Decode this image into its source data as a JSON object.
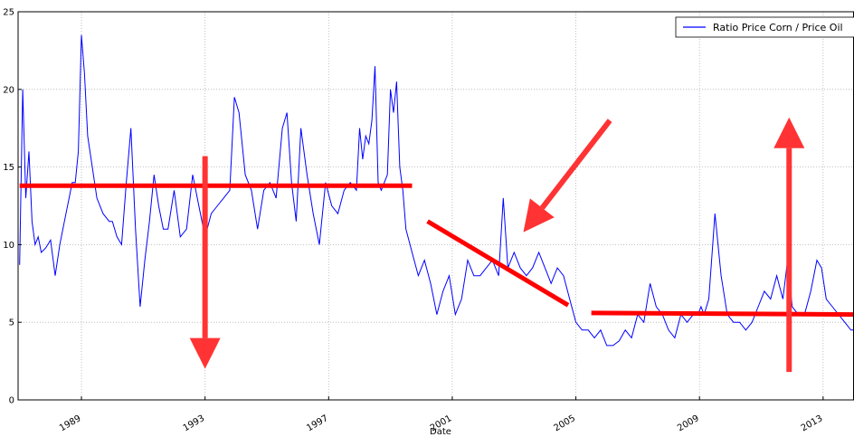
{
  "chart_data": {
    "type": "line",
    "title": "",
    "xlabel": "Date",
    "ylabel": "",
    "xlim": [
      1986.95,
      2014.0
    ],
    "ylim": [
      0,
      25
    ],
    "grid": true,
    "legend_placement": "top-right",
    "x_ticks": [
      1989,
      1993,
      1997,
      2001,
      2005,
      2009,
      2013
    ],
    "x_tick_labels": [
      "1989",
      "1993",
      "1997",
      "2001",
      "2005",
      "2009",
      "2013"
    ],
    "y_ticks": [
      0,
      5,
      10,
      15,
      20,
      25
    ],
    "y_tick_labels": [
      "0",
      "5",
      "10",
      "15",
      "20",
      "25"
    ],
    "series": [
      {
        "name": "Ratio Price Corn / Price Oil",
        "color": "#0000ff",
        "x": [
          1987.0,
          1987.1,
          1987.2,
          1987.3,
          1987.4,
          1987.5,
          1987.6,
          1987.7,
          1987.85,
          1988.0,
          1988.15,
          1988.3,
          1988.45,
          1988.6,
          1988.7,
          1988.8,
          1988.9,
          1989.0,
          1989.1,
          1989.2,
          1989.35,
          1989.5,
          1989.7,
          1989.9,
          1990.0,
          1990.15,
          1990.3,
          1990.45,
          1990.6,
          1990.75,
          1990.9,
          1991.05,
          1991.2,
          1991.35,
          1991.5,
          1991.65,
          1991.8,
          1992.0,
          1992.2,
          1992.4,
          1992.6,
          1992.8,
          1993.0,
          1993.2,
          1993.4,
          1993.6,
          1993.8,
          1993.95,
          1994.1,
          1994.3,
          1994.5,
          1994.7,
          1994.9,
          1995.1,
          1995.3,
          1995.5,
          1995.65,
          1995.8,
          1995.95,
          1996.1,
          1996.3,
          1996.5,
          1996.7,
          1996.9,
          1997.1,
          1997.3,
          1997.5,
          1997.7,
          1997.9,
          1998.0,
          1998.1,
          1998.2,
          1998.3,
          1998.4,
          1998.5,
          1998.6,
          1998.7,
          1998.8,
          1998.9,
          1999.0,
          1999.1,
          1999.2,
          1999.3,
          1999.4,
          1999.5,
          1999.7,
          1999.9,
          2000.1,
          2000.3,
          2000.5,
          2000.7,
          2000.9,
          2001.1,
          2001.3,
          2001.5,
          2001.7,
          2001.9,
          2002.1,
          2002.3,
          2002.5,
          2002.65,
          2002.8,
          2003.0,
          2003.2,
          2003.4,
          2003.6,
          2003.8,
          2004.0,
          2004.2,
          2004.4,
          2004.6,
          2004.8,
          2005.0,
          2005.2,
          2005.4,
          2005.6,
          2005.8,
          2006.0,
          2006.2,
          2006.4,
          2006.6,
          2006.8,
          2007.0,
          2007.2,
          2007.4,
          2007.6,
          2007.8,
          2008.0,
          2008.2,
          2008.4,
          2008.6,
          2008.8,
          2008.95,
          2009.05,
          2009.15,
          2009.3,
          2009.5,
          2009.7,
          2009.9,
          2010.1,
          2010.3,
          2010.5,
          2010.7,
          2010.9,
          2011.1,
          2011.3,
          2011.5,
          2011.7,
          2011.85,
          2012.0,
          2012.2,
          2012.4,
          2012.6,
          2012.8,
          2012.95,
          2013.1,
          2013.3,
          2013.5,
          2013.7,
          2013.9,
          2014.0
        ],
        "y": [
          8.7,
          20.0,
          13.0,
          16.0,
          11.5,
          10.0,
          10.5,
          9.5,
          9.8,
          10.3,
          8.0,
          10.0,
          11.5,
          13.0,
          14.0,
          14.0,
          16.0,
          23.5,
          21.0,
          17.0,
          15.0,
          13.0,
          12.0,
          11.5,
          11.5,
          10.5,
          10.0,
          14.0,
          17.5,
          11.0,
          6.0,
          9.0,
          11.5,
          14.5,
          12.5,
          11.0,
          11.0,
          13.5,
          10.5,
          11.0,
          14.5,
          12.5,
          10.5,
          12.0,
          12.5,
          13.0,
          13.5,
          19.5,
          18.5,
          14.5,
          13.5,
          11.0,
          13.5,
          14.0,
          13.0,
          17.5,
          18.5,
          14.0,
          11.5,
          17.5,
          14.5,
          12.0,
          10.0,
          14.0,
          12.5,
          12.0,
          13.5,
          14.0,
          13.5,
          17.5,
          15.5,
          17.0,
          16.5,
          18.0,
          21.5,
          14.0,
          13.5,
          14.0,
          14.5,
          20.0,
          18.5,
          20.5,
          15.0,
          13.5,
          11.0,
          9.5,
          8.0,
          9.0,
          7.5,
          5.5,
          7.0,
          8.0,
          5.5,
          6.5,
          9.0,
          8.0,
          8.0,
          8.5,
          9.0,
          8.0,
          13.0,
          8.5,
          9.5,
          8.5,
          8.0,
          8.5,
          9.5,
          8.5,
          7.5,
          8.5,
          8.0,
          6.5,
          5.0,
          4.5,
          4.5,
          4.0,
          4.5,
          3.5,
          3.5,
          3.8,
          4.5,
          4.0,
          5.5,
          5.0,
          7.5,
          6.0,
          5.5,
          4.5,
          4.0,
          5.5,
          5.0,
          5.5,
          5.5,
          6.0,
          5.5,
          6.5,
          12.0,
          8.0,
          5.5,
          5.0,
          5.0,
          4.5,
          5.0,
          6.0,
          7.0,
          6.5,
          8.0,
          6.5,
          9.0,
          6.0,
          5.5,
          5.5,
          7.0,
          9.0,
          8.5,
          6.5,
          6.0,
          5.5,
          5.0,
          4.5,
          4.5
        ]
      }
    ],
    "annotations": [
      {
        "type": "line",
        "color": "#ff0000",
        "x": [
          1987.0,
          1999.7
        ],
        "y": [
          13.8,
          13.8
        ]
      },
      {
        "type": "line",
        "color": "#ff0000",
        "x": [
          2000.2,
          2004.75
        ],
        "y": [
          11.5,
          6.1
        ]
      },
      {
        "type": "line",
        "color": "#ff0000",
        "x": [
          2005.5,
          2014.0
        ],
        "y": [
          5.6,
          5.5
        ]
      },
      {
        "type": "arrow",
        "color": "#ff3333",
        "x": [
          1993.0,
          1993.0
        ],
        "y": [
          15.7,
          2.0
        ]
      },
      {
        "type": "arrow",
        "color": "#ff3333",
        "x": [
          2011.9,
          2011.9
        ],
        "y": [
          1.8,
          18.2
        ]
      },
      {
        "type": "arrow",
        "color": "#ff3333",
        "x": [
          2006.1,
          2003.3
        ],
        "y": [
          18.0,
          10.8
        ]
      }
    ]
  }
}
